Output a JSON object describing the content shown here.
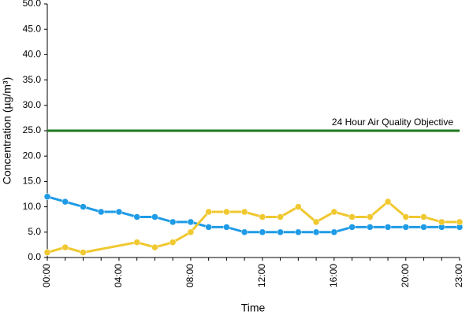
{
  "chart_data": {
    "type": "line",
    "xlabel": "Time",
    "ylabel": "Concentration (µg/m³)",
    "categories": [
      "00:00",
      null,
      null,
      null,
      "04:00",
      null,
      null,
      null,
      "08:00",
      null,
      null,
      null,
      "12:00",
      null,
      null,
      null,
      "16:00",
      null,
      null,
      null,
      "20:00",
      null,
      null,
      "23:00"
    ],
    "series": [
      {
        "color": "#1e9be6",
        "values": [
          12,
          11,
          10,
          9,
          9,
          8,
          8,
          7,
          7,
          6,
          6,
          5,
          5,
          5,
          5,
          5,
          5,
          6,
          6,
          6,
          6,
          6,
          6,
          6
        ]
      },
      {
        "color": "#f0c830",
        "values": [
          1,
          2,
          1,
          null,
          null,
          3,
          2,
          3,
          5,
          9,
          9,
          9,
          8,
          8,
          10,
          7,
          9,
          8,
          8,
          11,
          8,
          8,
          7,
          7
        ]
      }
    ],
    "span_gaps": true,
    "ylim": [
      0,
      50
    ],
    "yticks": [
      {
        "value": 0,
        "label": "0.0"
      },
      {
        "value": 5,
        "label": "5.0"
      },
      {
        "value": 10,
        "label": "10.0"
      },
      {
        "value": 15,
        "label": "15.0"
      },
      {
        "value": 20,
        "label": "20.0"
      },
      {
        "value": 25,
        "label": "25.0"
      },
      {
        "value": 30,
        "label": "30.0"
      },
      {
        "value": 35,
        "label": "35.0"
      },
      {
        "value": 40,
        "label": "40.0"
      },
      {
        "value": 45,
        "label": "45.0"
      },
      {
        "value": 50,
        "label": "50.0"
      }
    ],
    "reference_line": {
      "value": 25,
      "label": "24 Hour Air Quality Objective",
      "color": "#1f7a1f"
    }
  }
}
